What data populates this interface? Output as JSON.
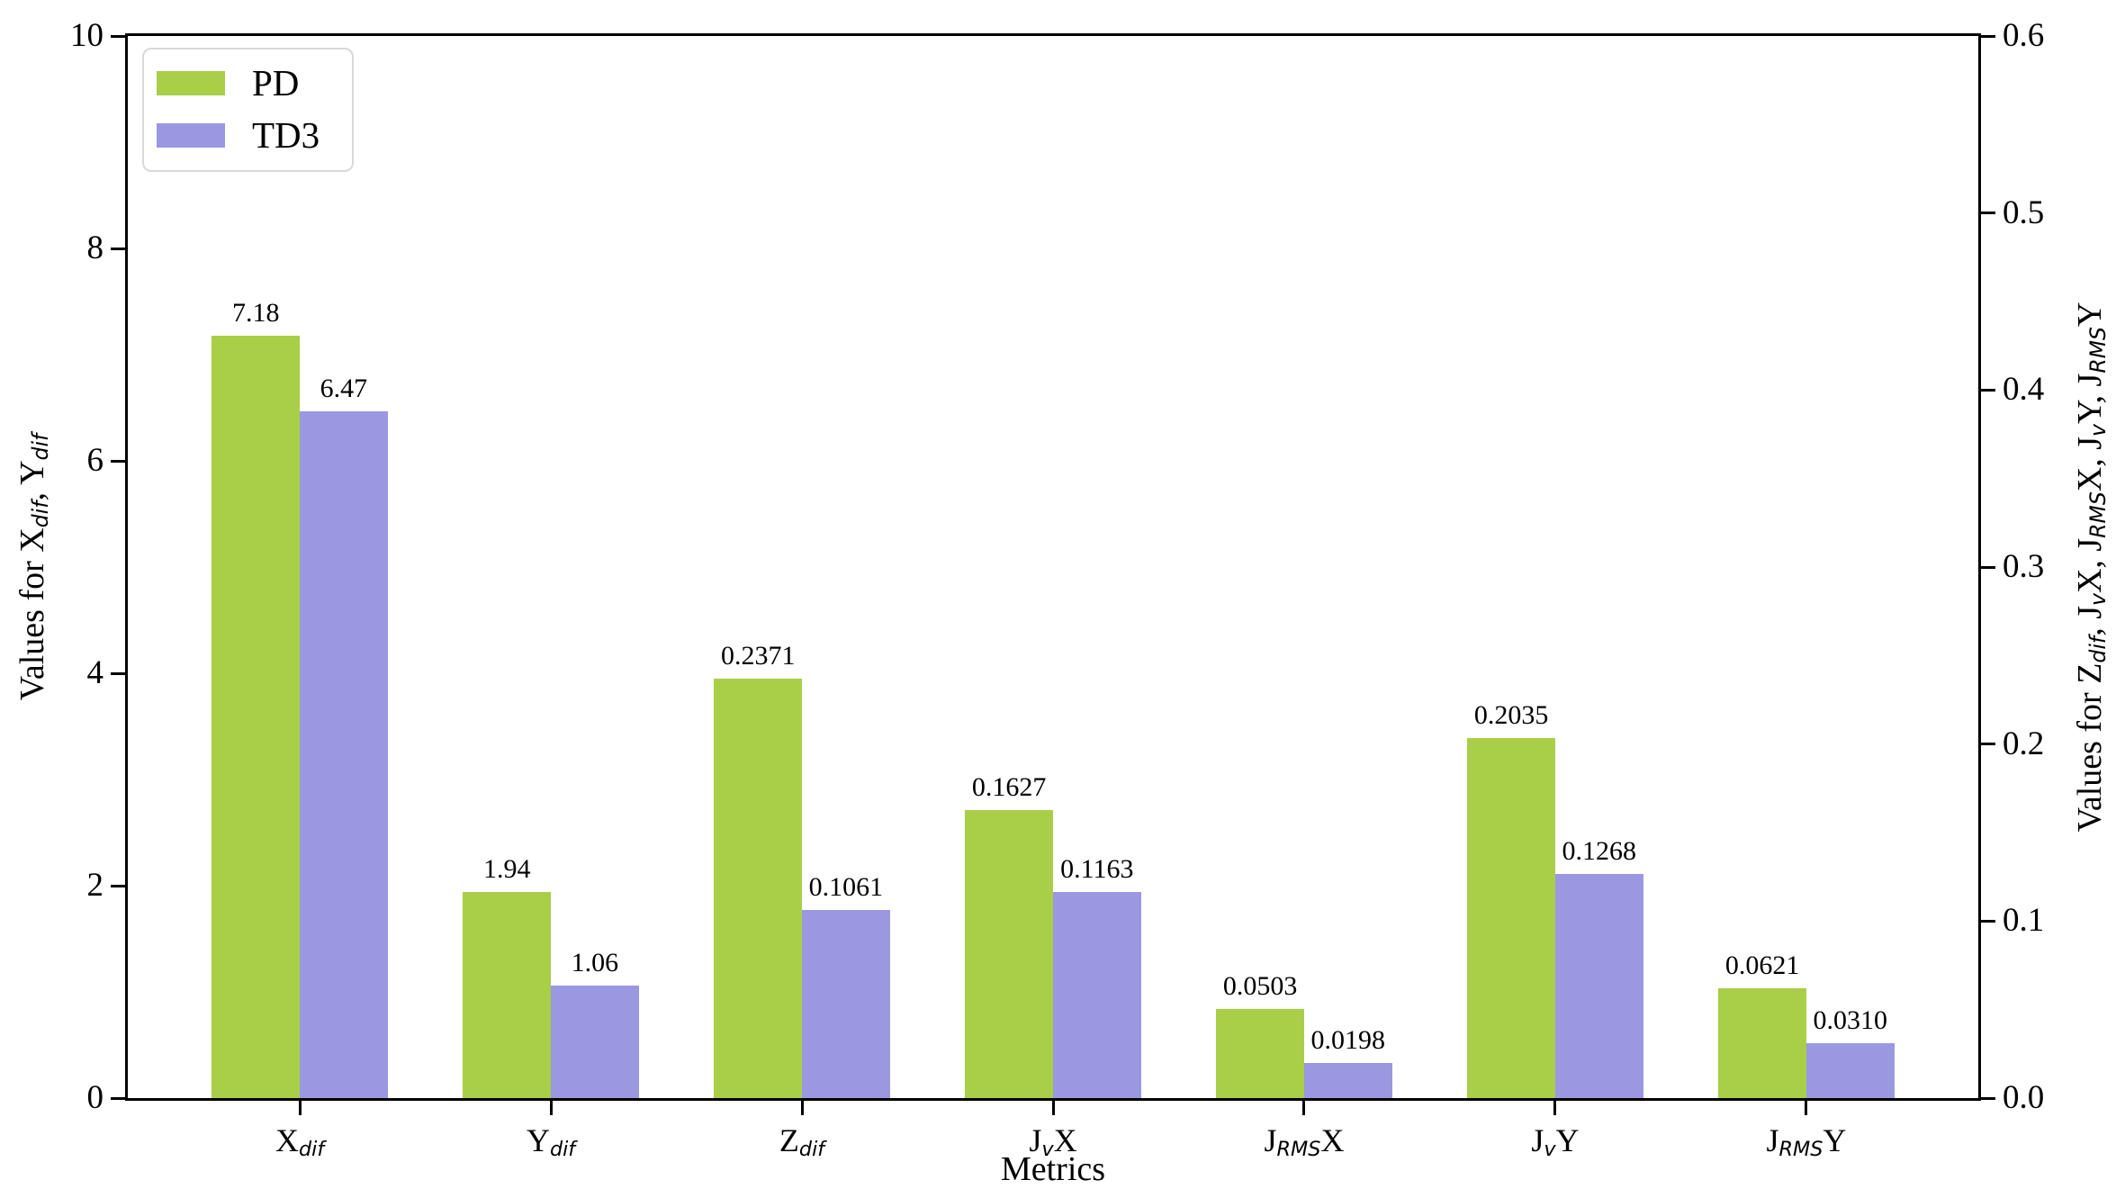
{
  "chart_data": {
    "type": "bar",
    "xlabel": "Metrics",
    "categories": [
      "X_{dif}",
      "Y_{dif}",
      "Z_{dif}",
      "J_{v}X",
      "J_{RMS}X",
      "J_{v}Y",
      "J_{RMS}Y"
    ],
    "category_axis": [
      "left",
      "left",
      "right",
      "right",
      "right",
      "right",
      "right"
    ],
    "series": [
      {
        "name": "PD",
        "color": "#a9ce48",
        "values": [
          7.18,
          1.94,
          0.2371,
          0.1627,
          0.0503,
          0.2035,
          0.0621
        ],
        "labels": [
          "7.18",
          "1.94",
          "0.2371",
          "0.1627",
          "0.0503",
          "0.2035",
          "0.0621"
        ]
      },
      {
        "name": "TD3",
        "color": "#9a98e0",
        "values": [
          6.47,
          1.06,
          0.1061,
          0.1163,
          0.0198,
          0.1268,
          0.031
        ],
        "labels": [
          "6.47",
          "1.06",
          "0.1061",
          "0.1163",
          "0.0198",
          "0.1268",
          "0.0310"
        ]
      }
    ],
    "left_axis": {
      "label": "Values for X_{dif}, Y_{dif}",
      "min": 0,
      "max": 10,
      "ticks": [
        "0",
        "2",
        "4",
        "6",
        "8",
        "10"
      ]
    },
    "right_axis": {
      "label": "Values for Z_{dif}, J_{v}X, J_{RMS}X, J_{v}Y, J_{RMS}Y",
      "min": 0.0,
      "max": 0.6,
      "ticks": [
        "0.0",
        "0.1",
        "0.2",
        "0.3",
        "0.4",
        "0.5",
        "0.6"
      ]
    },
    "legend": {
      "position": "upper left",
      "entries": [
        "PD",
        "TD3"
      ]
    },
    "grid": false,
    "bar_label_color": "#000000",
    "axis_color": "#000000"
  }
}
